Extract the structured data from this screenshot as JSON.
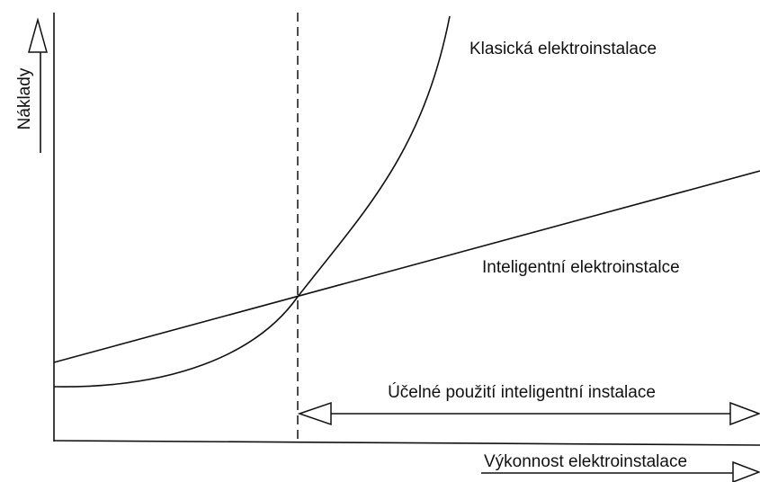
{
  "axes": {
    "y_label": "Náklady",
    "x_label": "Výkonnost elektroinstalace"
  },
  "curves": [
    {
      "label": "Klasická elektroinstalace"
    },
    {
      "label": "Inteligentní elektroinstalce"
    }
  ],
  "annotation": {
    "label": "Účelné použití inteligentní instalace"
  }
}
